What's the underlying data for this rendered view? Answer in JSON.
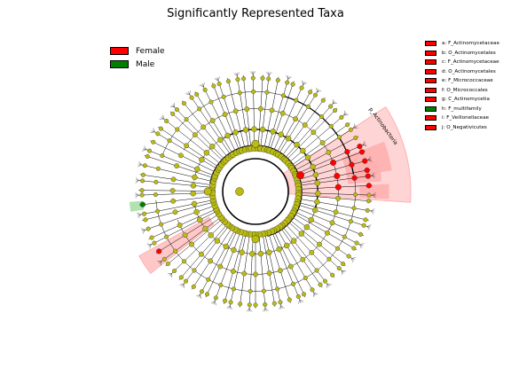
{
  "title": "Significantly Represented Taxa",
  "colors": {
    "female": "#ff0000",
    "male": "#008000",
    "node": "#bbbb12",
    "highlight_female": "#ffb0b0",
    "highlight_male": "#a8e0a8"
  },
  "legend": [
    {
      "label": "Female",
      "color": "#ff0000"
    },
    {
      "label": "Male",
      "color": "#008000"
    }
  ],
  "clades": [
    {
      "label": "a: F_Actinomycetaceae",
      "color": "#ff0000"
    },
    {
      "label": "b: O_Actinomycetales",
      "color": "#ff0000"
    },
    {
      "label": "c: F_Actinomycetaceae",
      "color": "#ff0000"
    },
    {
      "label": "d: O_Actinomycetales",
      "color": "#ff0000"
    },
    {
      "label": "e: F_Micrococcaceae",
      "color": "#ff0000"
    },
    {
      "label": "f: O_Micrococcales",
      "color": "#ff0000"
    },
    {
      "label": "g: C_Actinomycetia",
      "color": "#ff0000"
    },
    {
      "label": "h: F_multifamily",
      "color": "#008000"
    },
    {
      "label": "i: F_Veillonellaceae",
      "color": "#ff0000"
    },
    {
      "label": "j: O_Negativicutes",
      "color": "#ff0000"
    }
  ],
  "sector_labels": {
    "actinobacteria": "p_Actinobacteria"
  }
}
